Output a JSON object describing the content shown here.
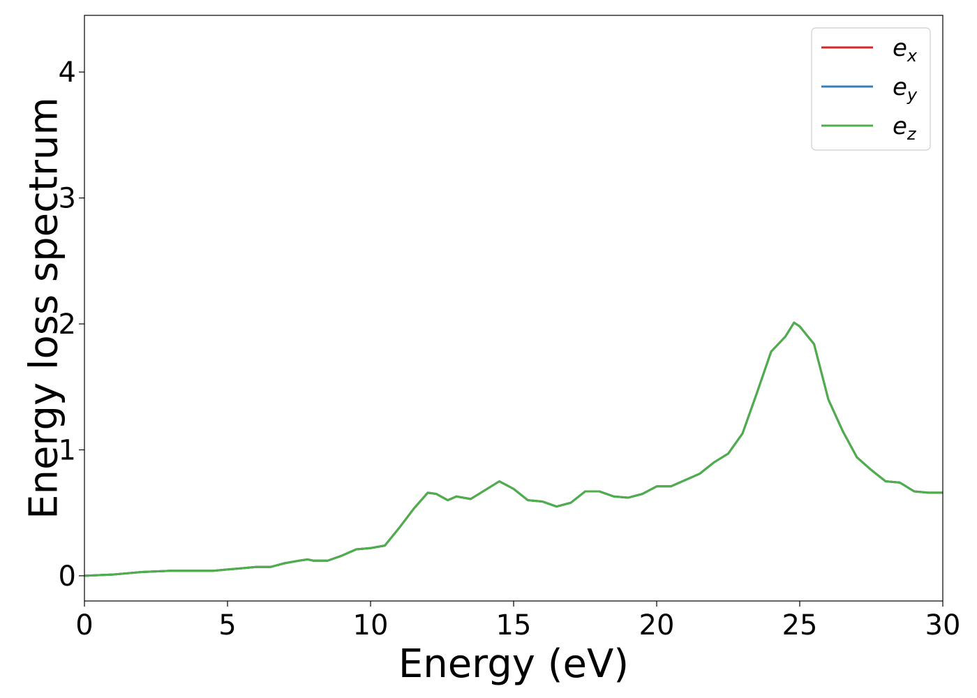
{
  "chart_data": {
    "type": "line",
    "title": "",
    "xlabel": "Energy (eV)",
    "ylabel": "Energy loss spectrum",
    "xlim": [
      0,
      30
    ],
    "ylim": [
      -0.2,
      4.45
    ],
    "xticks": [
      "0",
      "5",
      "10",
      "15",
      "20",
      "25",
      "30"
    ],
    "yticks": [
      "0",
      "1",
      "2",
      "3",
      "4"
    ],
    "grid": false,
    "legend_position": "top-right",
    "series": [
      {
        "name": "e_x",
        "legend_base": "e",
        "legend_sub": "x",
        "color": "#d62728",
        "x": [
          0,
          1,
          1.5,
          2,
          3,
          4,
          4.5,
          5,
          5.5,
          6,
          6.5,
          7,
          7.5,
          7.8,
          8,
          8.5,
          9,
          9.5,
          10,
          10.5,
          11,
          11.5,
          12,
          12.3,
          12.7,
          13,
          13.5,
          14,
          14.5,
          15,
          15.5,
          16,
          16.5,
          17,
          17.5,
          18,
          18.5,
          19,
          19.5,
          20,
          20.5,
          21,
          21.5,
          22,
          22.5,
          23,
          23.5,
          24,
          24.5,
          24.8,
          25,
          25.5,
          26,
          26.5,
          27,
          27.5,
          28,
          28.5,
          29,
          29.5,
          30
        ],
        "values": [
          0.0,
          0.01,
          0.02,
          0.03,
          0.04,
          0.04,
          0.04,
          0.05,
          0.06,
          0.07,
          0.07,
          0.1,
          0.12,
          0.13,
          0.12,
          0.12,
          0.16,
          0.21,
          0.22,
          0.24,
          0.38,
          0.53,
          0.66,
          0.65,
          0.6,
          0.63,
          0.61,
          0.68,
          0.75,
          0.69,
          0.6,
          0.59,
          0.55,
          0.58,
          0.67,
          0.67,
          0.63,
          0.62,
          0.65,
          0.71,
          0.71,
          0.76,
          0.81,
          0.9,
          0.97,
          1.13,
          1.45,
          1.78,
          1.9,
          2.01,
          1.98,
          1.84,
          1.4,
          1.15,
          0.94,
          0.84,
          0.75,
          0.74,
          0.67,
          0.66,
          0.66
        ]
      },
      {
        "name": "e_y",
        "legend_base": "e",
        "legend_sub": "y",
        "color": "#377eb8",
        "x": [
          0,
          1,
          1.5,
          2,
          3,
          4,
          4.5,
          5,
          5.5,
          6,
          6.5,
          7,
          7.5,
          7.8,
          8,
          8.5,
          9,
          9.5,
          10,
          10.5,
          11,
          11.5,
          12,
          12.3,
          12.7,
          13,
          13.5,
          14,
          14.5,
          15,
          15.5,
          16,
          16.5,
          17,
          17.5,
          18,
          18.5,
          19,
          19.5,
          20,
          20.5,
          21,
          21.5,
          22,
          22.5,
          23,
          23.5,
          24,
          24.5,
          24.8,
          25,
          25.5,
          26,
          26.5,
          27,
          27.5,
          28,
          28.5,
          29,
          29.5,
          30
        ],
        "values": [
          0.0,
          0.01,
          0.02,
          0.03,
          0.04,
          0.04,
          0.04,
          0.05,
          0.06,
          0.07,
          0.07,
          0.1,
          0.12,
          0.13,
          0.12,
          0.12,
          0.16,
          0.21,
          0.22,
          0.24,
          0.38,
          0.53,
          0.66,
          0.65,
          0.6,
          0.63,
          0.61,
          0.68,
          0.75,
          0.69,
          0.6,
          0.59,
          0.55,
          0.58,
          0.67,
          0.67,
          0.63,
          0.62,
          0.65,
          0.71,
          0.71,
          0.76,
          0.81,
          0.9,
          0.97,
          1.13,
          1.45,
          1.78,
          1.9,
          2.01,
          1.98,
          1.84,
          1.4,
          1.15,
          0.94,
          0.84,
          0.75,
          0.74,
          0.67,
          0.66,
          0.66
        ]
      },
      {
        "name": "e_z",
        "legend_base": "e",
        "legend_sub": "z",
        "color": "#4daf4a",
        "x": [
          0,
          1,
          1.5,
          2,
          3,
          4,
          4.5,
          5,
          5.5,
          6,
          6.5,
          7,
          7.5,
          7.8,
          8,
          8.5,
          9,
          9.5,
          10,
          10.5,
          11,
          11.5,
          12,
          12.3,
          12.7,
          13,
          13.5,
          14,
          14.5,
          15,
          15.5,
          16,
          16.5,
          17,
          17.5,
          18,
          18.5,
          19,
          19.5,
          20,
          20.5,
          21,
          21.5,
          22,
          22.5,
          23,
          23.5,
          24,
          24.5,
          24.8,
          25,
          25.5,
          26,
          26.5,
          27,
          27.5,
          28,
          28.5,
          29,
          29.5,
          30
        ],
        "values": [
          0.0,
          0.01,
          0.02,
          0.03,
          0.04,
          0.04,
          0.04,
          0.05,
          0.06,
          0.07,
          0.07,
          0.1,
          0.12,
          0.13,
          0.12,
          0.12,
          0.16,
          0.21,
          0.22,
          0.24,
          0.38,
          0.53,
          0.66,
          0.65,
          0.6,
          0.63,
          0.61,
          0.68,
          0.75,
          0.69,
          0.6,
          0.59,
          0.55,
          0.58,
          0.67,
          0.67,
          0.63,
          0.62,
          0.65,
          0.71,
          0.71,
          0.76,
          0.81,
          0.9,
          0.97,
          1.13,
          1.45,
          1.78,
          1.9,
          2.01,
          1.98,
          1.84,
          1.4,
          1.15,
          0.94,
          0.84,
          0.75,
          0.74,
          0.67,
          0.66,
          0.66
        ]
      }
    ]
  }
}
